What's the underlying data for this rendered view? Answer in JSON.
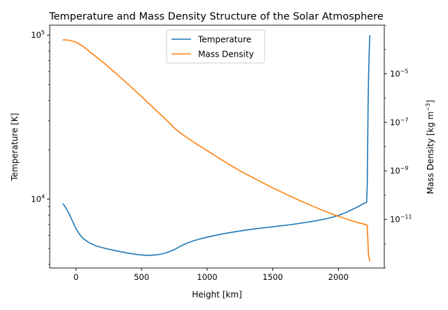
{
  "chart_data": {
    "type": "line",
    "title": "Temperature and Mass Density Structure of the Solar Atmosphere",
    "xlabel": "Height [km]",
    "ylabel_left": "Temperature [K]",
    "ylabel_right_text": "Mass Density [kg m",
    "ylabel_right_sup": "−3",
    "ylabel_right_close": "]",
    "xlim": [
      -200,
      2350
    ],
    "ylim_left": [
      3800,
      115000
    ],
    "ylim_right": [
      1e-13,
      0.001
    ],
    "y_left_scale": "log",
    "y_right_scale": "log",
    "grid": false,
    "legend_position": "top-center",
    "x_ticks": [
      0,
      500,
      1000,
      1500,
      2000
    ],
    "y_left_major_ticks": [
      {
        "value": 10000,
        "mant": "10",
        "exp": "4"
      },
      {
        "value": 100000,
        "mant": "10",
        "exp": "5"
      }
    ],
    "y_right_major_ticks": [
      {
        "value": 1e-11,
        "mant": "10",
        "exp": "−11"
      },
      {
        "value": 1e-09,
        "mant": "10",
        "exp": "−9"
      },
      {
        "value": 1e-07,
        "mant": "10",
        "exp": "−7"
      },
      {
        "value": 1e-05,
        "mant": "10",
        "exp": "−5"
      }
    ],
    "series": [
      {
        "name": "Temperature",
        "axis": "left",
        "color": "#1f77b4",
        "x": [
          -100,
          -75,
          -50,
          -25,
          0,
          25,
          50,
          75,
          100,
          150,
          200,
          250,
          300,
          350,
          400,
          450,
          500,
          550,
          600,
          650,
          700,
          750,
          800,
          850,
          900,
          950,
          1000,
          1100,
          1200,
          1300,
          1400,
          1500,
          1600,
          1700,
          1800,
          1900,
          1950,
          2000,
          2050,
          2100,
          2150,
          2200,
          2215,
          2220,
          2223,
          2226,
          2230,
          2235,
          2240
        ],
        "values": [
          9400,
          8800,
          8100,
          7300,
          6600,
          6150,
          5800,
          5600,
          5430,
          5200,
          5060,
          4950,
          4850,
          4760,
          4680,
          4610,
          4560,
          4540,
          4560,
          4620,
          4740,
          4920,
          5180,
          5400,
          5580,
          5730,
          5860,
          6100,
          6300,
          6480,
          6640,
          6780,
          6930,
          7100,
          7310,
          7570,
          7740,
          7950,
          8240,
          8600,
          9000,
          9450,
          9550,
          12000,
          20000,
          35000,
          55000,
          80000,
          100000
        ]
      },
      {
        "name": "Mass Density",
        "axis": "right",
        "color": "#ff7f0e",
        "x": [
          -100,
          -50,
          0,
          50,
          100,
          200,
          300,
          400,
          500,
          600,
          700,
          750,
          800,
          900,
          1000,
          1100,
          1200,
          1250,
          1300,
          1400,
          1500,
          1600,
          1700,
          1800,
          1900,
          2000,
          2100,
          2200,
          2220,
          2225,
          2230,
          2240
        ],
        "values": [
          0.00025,
          0.00024,
          0.0002,
          0.00014,
          8.5e-05,
          3.2e-05,
          1.1e-05,
          3.6e-06,
          1.15e-06,
          3.5e-07,
          1.1e-07,
          5.8e-08,
          3.5e-08,
          1.5e-08,
          6.8e-09,
          3.1e-09,
          1.45e-09,
          1e-09,
          7.2e-10,
          3.8e-10,
          2e-10,
          1.1e-10,
          6.2e-11,
          3.6e-11,
          2.15e-11,
          1.35e-11,
          8.8e-12,
          6.3e-12,
          5.8e-12,
          1.3e-12,
          3.2e-13,
          1.9e-13
        ]
      }
    ]
  }
}
